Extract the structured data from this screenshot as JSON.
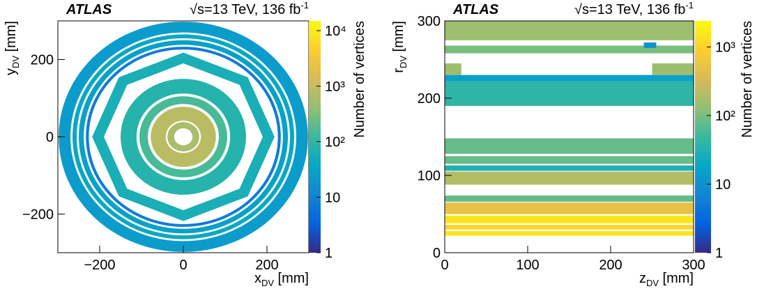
{
  "chart_data": [
    {
      "type": "heatmap",
      "title": "ATLAS",
      "energy": {
        "text": "√s=13 TeV, 136 fb",
        "sup": "-1"
      },
      "x_label": {
        "symbol": "x",
        "sub": "DV",
        "unit": " [mm]"
      },
      "y_label": {
        "symbol": "y",
        "sub": "DV",
        "unit": " [mm]"
      },
      "colorbar_label": "Number of vertices",
      "xlim": [
        -300,
        300
      ],
      "xticks": [
        {
          "value": -200,
          "label": "−200"
        },
        0,
        200
      ],
      "ylim": [
        -300,
        300
      ],
      "yticks": [
        {
          "value": -200,
          "label": "−200"
        },
        0,
        200
      ],
      "zlim": [
        1,
        15000
      ],
      "log_z": true,
      "zticks": [
        1,
        10,
        {
          "value": 100,
          "label": "10²"
        },
        {
          "value": 1000,
          "label": "10³"
        },
        {
          "value": 10000,
          "label": "10⁴"
        }
      ],
      "colormap": [
        "#352a87",
        "#0363e1",
        "#1485d4",
        "#06a7c6",
        "#38b99e",
        "#92bf73",
        "#d9ba56",
        "#fcce2e",
        "#f9fb0e"
      ],
      "rings": [
        {
          "r_inner": 270,
          "r_outer": 298,
          "value": 25,
          "sides": 0
        },
        {
          "r_inner": 255,
          "r_outer": 265,
          "value": 40,
          "sides": 0
        },
        {
          "r_inner": 238,
          "r_outer": 250,
          "value": 30,
          "sides": 0
        },
        {
          "r_inner": 226,
          "r_outer": 233,
          "value": 8,
          "sides": 0
        },
        {
          "r_inner": 190,
          "r_outer": 218,
          "value": 60,
          "sides": 8
        },
        {
          "r_inner": 112,
          "r_outer": 150,
          "value": 80,
          "sides": 0
        },
        {
          "r_inner": 85,
          "r_outer": 105,
          "value": 150,
          "sides": 0
        },
        {
          "r_inner": 42,
          "r_outer": 78,
          "value": 800,
          "sides": 0
        },
        {
          "r_inner": 22,
          "r_outer": 38,
          "value": 600,
          "sides": 0
        }
      ]
    },
    {
      "type": "bands",
      "title": "ATLAS",
      "energy": {
        "text": "√s=13 TeV, 136 fb",
        "sup": "-1"
      },
      "x_label": {
        "symbol": "z",
        "sub": "DV",
        "unit": " [mm]"
      },
      "y_label": {
        "symbol": "r",
        "sub": "DV",
        "unit": " [mm]"
      },
      "colorbar_label": "Number of vertices",
      "xlim": [
        0,
        300
      ],
      "xticks": [
        0,
        100,
        200,
        300
      ],
      "ylim": [
        0,
        300
      ],
      "yticks": [
        0,
        100,
        200,
        300
      ],
      "zlim": [
        1,
        2400
      ],
      "log_z": true,
      "zticks": [
        1,
        10,
        {
          "value": 100,
          "label": "10²"
        },
        {
          "value": 1000,
          "label": "10³"
        }
      ],
      "colormap": [
        "#352a87",
        "#0363e1",
        "#1485d4",
        "#06a7c6",
        "#38b99e",
        "#92bf73",
        "#d9ba56",
        "#fcce2e",
        "#f9fb0e"
      ],
      "bands": [
        {
          "z": [
            0,
            300
          ],
          "r": [
            275,
            300
          ],
          "value": 150
        },
        {
          "z": [
            0,
            300
          ],
          "r": [
            258,
            268
          ],
          "value": 100
        },
        {
          "z": [
            240,
            255
          ],
          "r": [
            265,
            272
          ],
          "value": 10
        },
        {
          "z": [
            0,
            20
          ],
          "r": [
            230,
            245
          ],
          "value": 150
        },
        {
          "z": [
            250,
            300
          ],
          "r": [
            230,
            245
          ],
          "value": 150
        },
        {
          "z": [
            0,
            300
          ],
          "r": [
            222,
            230
          ],
          "value": 15
        },
        {
          "z": [
            0,
            300
          ],
          "r": [
            190,
            222
          ],
          "value": 40
        },
        {
          "z": [
            0,
            300
          ],
          "r": [
            128,
            148
          ],
          "value": 80
        },
        {
          "z": [
            0,
            300
          ],
          "r": [
            115,
            125
          ],
          "value": 80
        },
        {
          "z": [
            0,
            300
          ],
          "r": [
            106,
            113
          ],
          "value": 30
        },
        {
          "z": [
            0,
            300
          ],
          "r": [
            88,
            105
          ],
          "value": 200
        },
        {
          "z": [
            0,
            300
          ],
          "r": [
            66,
            74
          ],
          "value": 80
        },
        {
          "z": [
            0,
            300
          ],
          "r": [
            50,
            65
          ],
          "value": 500
        },
        {
          "z": [
            0,
            300
          ],
          "r": [
            38,
            48
          ],
          "value": 1500
        },
        {
          "z": [
            0,
            300
          ],
          "r": [
            30,
            36
          ],
          "value": 1000
        },
        {
          "z": [
            0,
            300
          ],
          "r": [
            22,
            28
          ],
          "value": 1500
        }
      ]
    }
  ]
}
